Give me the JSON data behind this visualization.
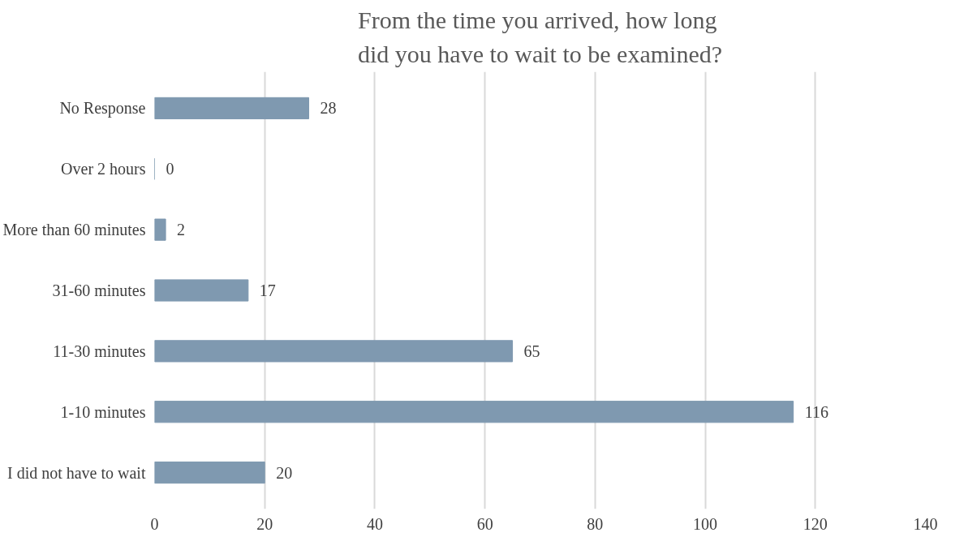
{
  "chart_data": {
    "type": "bar",
    "orientation": "horizontal",
    "title": "From the time you arrived, how long\ndid you have to wait to be examined?",
    "categories": [
      "No Response",
      "Over 2 hours",
      "More than 60 minutes",
      "31-60 minutes",
      "11-30 minutes",
      "1-10 minutes",
      "I did not have to wait"
    ],
    "values": [
      28,
      0,
      2,
      17,
      65,
      116,
      20
    ],
    "color": "#7f99b0",
    "xlim": [
      0,
      140
    ],
    "xticks": [
      0,
      20,
      40,
      60,
      80,
      100,
      120,
      140
    ],
    "grid": "x",
    "data_labels": true
  }
}
